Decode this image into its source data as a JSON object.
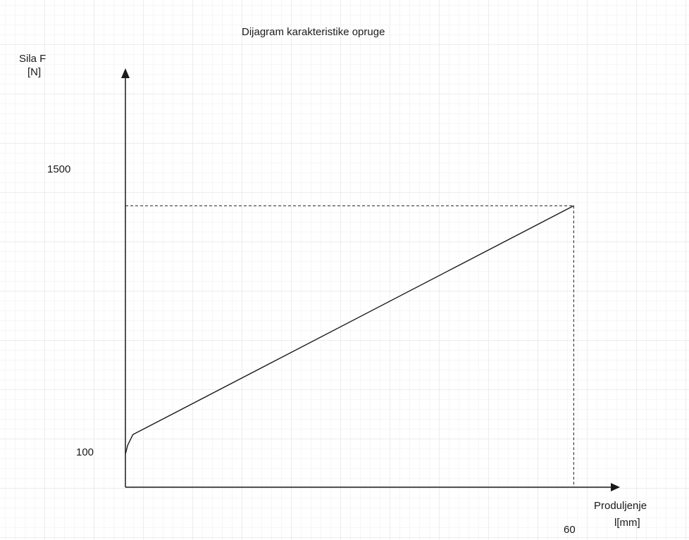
{
  "chart_data": {
    "type": "line",
    "title": "Dijagram karakteristike opruge",
    "ylabel": [
      "Sila F",
      "[N]"
    ],
    "xlabel": [
      "Produljenje",
      "l[mm]"
    ],
    "y_ticks": [
      {
        "value": 1500,
        "label": "1500"
      },
      {
        "value": 100,
        "label": "100"
      }
    ],
    "x_ticks": [
      {
        "value": 60,
        "label": "60"
      }
    ],
    "xlim": [
      0,
      66
    ],
    "ylim": [
      -380,
      2580
    ],
    "series": [
      {
        "x": [
          0,
          0.3,
          1,
          60
        ],
        "y": [
          100,
          150,
          210,
          1500
        ]
      }
    ],
    "guides": [
      {
        "x": 60,
        "y": 1500
      }
    ],
    "grid": true,
    "colors": {
      "line": "#1a1a1a",
      "guide": "#1a1a1a",
      "text": "#1a1a1a"
    }
  }
}
